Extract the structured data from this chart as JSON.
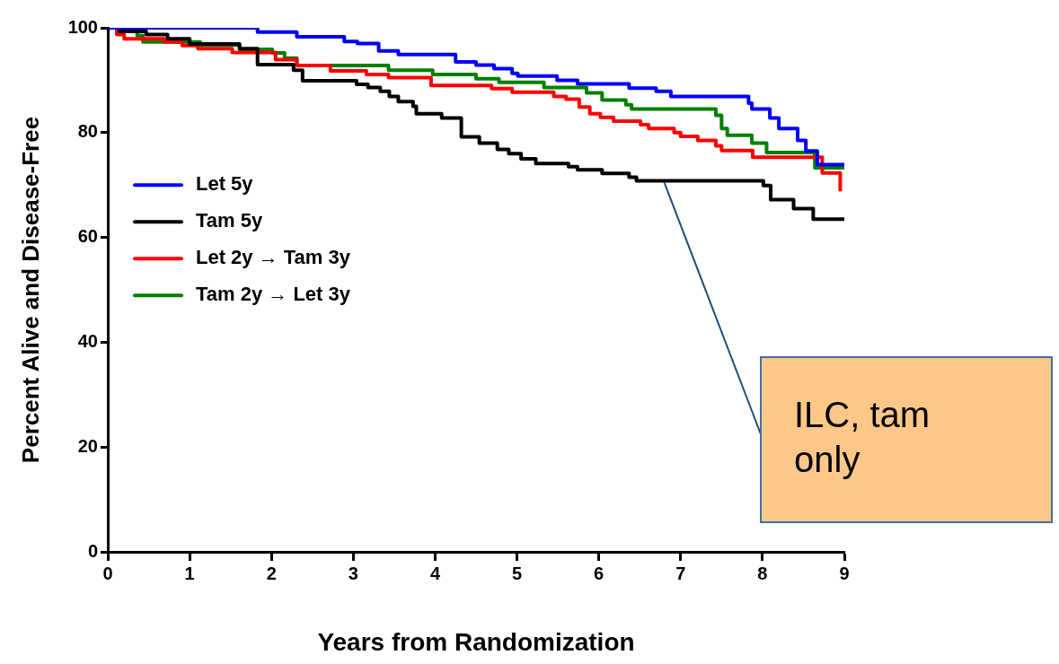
{
  "chart_data": {
    "type": "step",
    "xlabel": "Years from Randomization",
    "ylabel": "Percent Alive and Disease-Free",
    "xlim": [
      0,
      9
    ],
    "xticks": [
      0,
      1,
      2,
      3,
      4,
      5,
      6,
      7,
      8,
      9
    ],
    "ylim": [
      0,
      100
    ],
    "yticks": [
      0,
      20,
      40,
      60,
      80,
      100
    ],
    "grid": false,
    "legend": "left",
    "marker": "none",
    "line_style": "solid",
    "annotations": [
      {
        "text": "ILC, tam only",
        "x": 6.8,
        "y": 70.5
      }
    ],
    "series": [
      {
        "name": "Let 5y",
        "color": "#0000ff",
        "x": [
          0,
          1.83,
          2.31,
          2.89,
          3.05,
          3.31,
          3.55,
          4.25,
          4.5,
          4.72,
          4.94,
          5.01,
          5.49,
          5.74,
          6.37,
          6.7,
          6.88,
          7.83,
          7.87,
          8.09,
          8.2,
          8.43,
          8.53,
          8.67,
          9.0
        ],
        "values": [
          100,
          99.2,
          98.3,
          97.4,
          97.0,
          95.6,
          94.9,
          93.5,
          92.9,
          92.2,
          91.3,
          90.8,
          90.0,
          89.3,
          88.5,
          87.9,
          86.9,
          85.6,
          84.5,
          82.8,
          80.8,
          78.5,
          76.5,
          73.9,
          73.9
        ]
      },
      {
        "name": "Tam 5y",
        "color": "#000000",
        "x": [
          0,
          0.14,
          0.47,
          0.73,
          1.0,
          1.61,
          1.83,
          2.27,
          2.38,
          3.04,
          3.18,
          3.33,
          3.44,
          3.55,
          3.73,
          3.77,
          4.08,
          4.32,
          4.54,
          4.76,
          4.9,
          5.05,
          5.23,
          5.63,
          5.74,
          6.04,
          6.37,
          6.46,
          8.01,
          8.1,
          8.38,
          8.62,
          9.0
        ],
        "values": [
          100,
          99.3,
          98.7,
          97.9,
          96.9,
          96.0,
          93.0,
          91.9,
          89.9,
          89.2,
          88.6,
          87.9,
          86.9,
          85.9,
          85.0,
          83.6,
          82.8,
          79.2,
          78.0,
          76.8,
          76.0,
          75.0,
          74.1,
          73.5,
          72.9,
          72.2,
          71.5,
          70.8,
          69.9,
          67.2,
          65.5,
          63.5,
          63.5
        ]
      },
      {
        "name": "Let 2y → Tam 3y",
        "color": "#ff0000",
        "x": [
          0,
          0.11,
          0.2,
          0.69,
          0.91,
          1.1,
          1.52,
          2.05,
          2.31,
          2.72,
          3.16,
          3.43,
          3.95,
          4.69,
          4.94,
          5.45,
          5.6,
          5.76,
          5.89,
          6.02,
          6.18,
          6.51,
          6.61,
          6.92,
          7.0,
          7.21,
          7.43,
          7.5,
          7.88,
          8.73,
          8.95,
          8.95
        ],
        "values": [
          100,
          98.7,
          97.9,
          97.3,
          96.6,
          96.0,
          95.3,
          93.9,
          92.8,
          91.8,
          91.1,
          90.5,
          89.0,
          88.4,
          87.7,
          86.9,
          86.4,
          84.9,
          83.6,
          82.9,
          82.2,
          81.5,
          80.8,
          80.0,
          79.3,
          78.5,
          77.5,
          76.6,
          75.3,
          72.3,
          72.3,
          68.8
        ]
      },
      {
        "name": "Tam 2y → Let 3y",
        "color": "#008000",
        "x": [
          0,
          0.36,
          0.43,
          1.13,
          1.61,
          2.01,
          2.16,
          2.31,
          3.43,
          3.97,
          4.5,
          4.78,
          5.33,
          5.85,
          6.04,
          6.33,
          6.4,
          7.43,
          7.5,
          7.57,
          7.87,
          8.05,
          8.64,
          9.0
        ],
        "values": [
          100,
          98.5,
          97.3,
          96.7,
          95.9,
          95.2,
          94.2,
          92.8,
          91.9,
          91.1,
          90.3,
          89.6,
          88.6,
          87.6,
          86.2,
          85.3,
          84.5,
          83.3,
          80.8,
          79.5,
          78.0,
          76.2,
          73.3,
          73.3
        ]
      }
    ]
  }
}
